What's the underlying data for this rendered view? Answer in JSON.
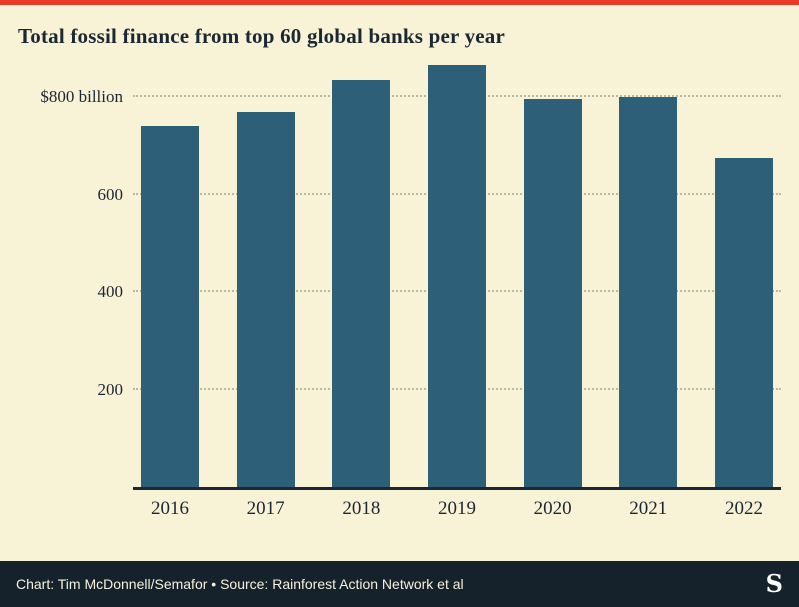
{
  "colors": {
    "background": "#f8f3d7",
    "bar": "#2e5f78",
    "accent_red": "#e83d23",
    "footer_background": "#15222c",
    "ink": "#1b2733",
    "gridline": "#bcb7a2",
    "footer_text": "#f6f1da"
  },
  "footer": {
    "credit": "Chart: Tim McDonnell/Semafor • Source: Rainforest Action Network et al",
    "logo_glyph": "S"
  },
  "chart_data": {
    "type": "bar",
    "title": "Total fossil finance from top 60 global banks per year",
    "categories": [
      "2016",
      "2017",
      "2018",
      "2019",
      "2020",
      "2021",
      "2022"
    ],
    "values": [
      740,
      770,
      835,
      865,
      795,
      800,
      675
    ],
    "unit": "$ billion",
    "xlabel": "",
    "ylabel": "",
    "ylim": [
      0,
      880
    ],
    "y_ticks": [
      {
        "value": 200,
        "label": "200"
      },
      {
        "value": 400,
        "label": "400"
      },
      {
        "value": 600,
        "label": "600"
      },
      {
        "value": 800,
        "label": "$800 billion"
      }
    ],
    "grid": "horizontal-dotted",
    "legend": "none"
  }
}
